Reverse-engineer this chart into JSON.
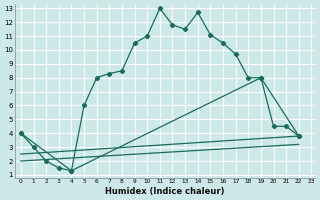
{
  "xlabel": "Humidex (Indice chaleur)",
  "bg_color": "#cce8e8",
  "grid_color": "#ffffff",
  "line_color": "#1a6b5a",
  "xlim": [
    -0.5,
    23.3
  ],
  "ylim": [
    0.8,
    13.3
  ],
  "xticks": [
    0,
    1,
    2,
    3,
    4,
    5,
    6,
    7,
    8,
    9,
    10,
    11,
    12,
    13,
    14,
    15,
    16,
    17,
    18,
    19,
    20,
    21,
    22,
    23
  ],
  "yticks": [
    1,
    2,
    3,
    4,
    5,
    6,
    7,
    8,
    9,
    10,
    11,
    12,
    13
  ],
  "lines": [
    {
      "x": [
        0,
        1,
        2,
        3,
        4,
        5,
        6,
        7,
        8,
        9,
        10,
        11,
        12,
        13,
        14,
        15,
        16,
        17,
        18,
        19,
        20,
        21,
        22
      ],
      "y": [
        4,
        3,
        2,
        1.5,
        1.3,
        6,
        8,
        8.3,
        8.5,
        10.5,
        11,
        13,
        11.8,
        11.5,
        12.7,
        11.1,
        10.5,
        9.7,
        8,
        8.0,
        4.5,
        4.5,
        3.8
      ]
    },
    {
      "x": [
        0,
        4,
        19,
        22
      ],
      "y": [
        4,
        1.3,
        8,
        3.8
      ]
    },
    {
      "x": [
        0,
        22
      ],
      "y": [
        2.5,
        3.8
      ]
    },
    {
      "x": [
        0,
        22
      ],
      "y": [
        2.0,
        3.2
      ]
    }
  ]
}
